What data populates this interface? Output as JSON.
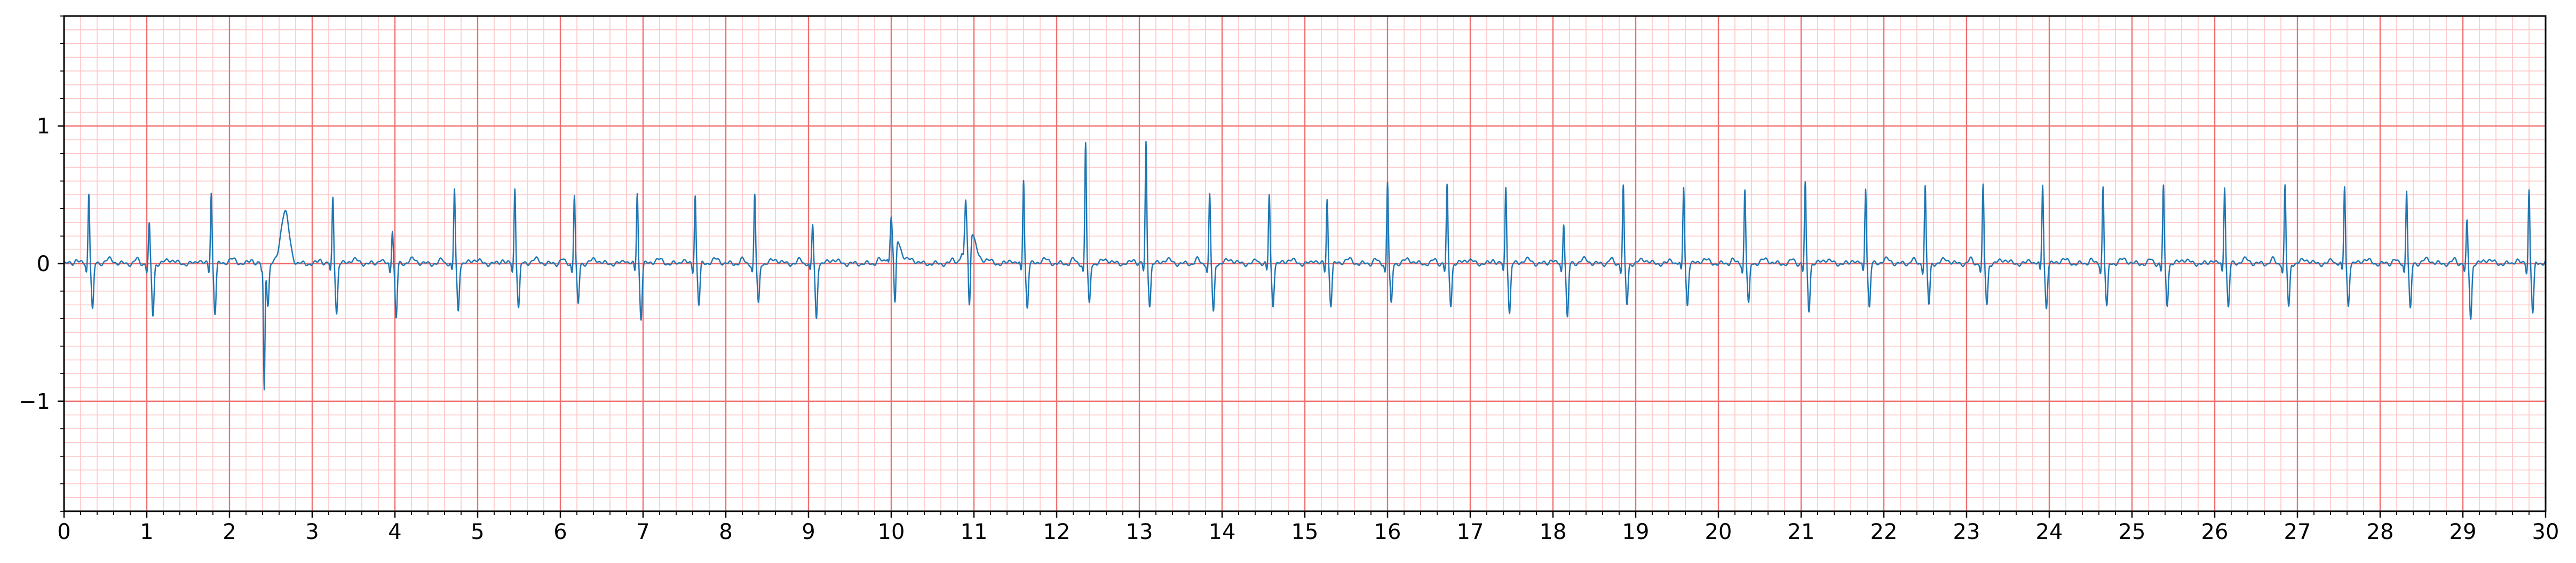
{
  "chart_data": {
    "type": "line",
    "title": "",
    "xlabel": "",
    "ylabel": "",
    "xlim": [
      0,
      30
    ],
    "ylim": [
      -1.8,
      1.8
    ],
    "grid": true,
    "legend": "none",
    "x_ticks": [
      0,
      1,
      2,
      3,
      4,
      5,
      6,
      7,
      8,
      9,
      10,
      11,
      12,
      13,
      14,
      15,
      16,
      17,
      18,
      19,
      20,
      21,
      22,
      23,
      24,
      25,
      26,
      27,
      28,
      29,
      30
    ],
    "x_tick_labels": [
      "0",
      "1",
      "2",
      "3",
      "4",
      "5",
      "6",
      "7",
      "8",
      "9",
      "10",
      "11",
      "12",
      "13",
      "14",
      "15",
      "16",
      "17",
      "18",
      "19",
      "20",
      "21",
      "22",
      "23",
      "24",
      "25",
      "26",
      "27",
      "28",
      "29",
      "30"
    ],
    "y_ticks": [
      1,
      0,
      -1
    ],
    "y_tick_labels": [
      "1",
      "0",
      "−1"
    ],
    "colors": {
      "trace": "#1f77b4",
      "major_grid": "#f07070",
      "minor_grid": "#ffc4c4",
      "axis": "#000000"
    },
    "beat_times": [
      0.3,
      1.03,
      1.78,
      2.42,
      3.25,
      3.97,
      4.72,
      5.45,
      6.17,
      6.93,
      7.63,
      8.35,
      9.05,
      10.0,
      10.9,
      11.6,
      12.35,
      13.08,
      13.85,
      14.57,
      15.27,
      16.0,
      16.72,
      17.43,
      18.13,
      18.85,
      19.58,
      20.32,
      21.05,
      21.78,
      22.5,
      23.2,
      23.92,
      24.65,
      25.38,
      26.12,
      26.85,
      27.57,
      28.32,
      29.05,
      29.8
    ],
    "r_peaks": [
      0.52,
      0.28,
      0.52,
      -0.92,
      0.48,
      0.25,
      0.54,
      0.55,
      0.5,
      0.52,
      0.5,
      0.5,
      0.28,
      0.2,
      0.27,
      0.62,
      0.88,
      0.88,
      0.5,
      0.5,
      0.47,
      0.6,
      0.56,
      0.56,
      0.3,
      0.56,
      0.56,
      0.54,
      0.58,
      0.56,
      0.56,
      0.56,
      0.58,
      0.56,
      0.56,
      0.57,
      0.56,
      0.56,
      0.54,
      0.3,
      0.54
    ],
    "s_troughs": [
      -0.34,
      -0.38,
      -0.36,
      -0.3,
      -0.36,
      -0.4,
      -0.34,
      -0.32,
      -0.3,
      -0.4,
      -0.3,
      -0.3,
      -0.4,
      -0.5,
      -0.57,
      -0.32,
      -0.3,
      -0.3,
      -0.36,
      -0.3,
      -0.3,
      -0.3,
      -0.3,
      -0.36,
      -0.4,
      -0.3,
      -0.3,
      -0.3,
      -0.34,
      -0.32,
      -0.3,
      -0.3,
      -0.32,
      -0.32,
      -0.3,
      -0.32,
      -0.32,
      -0.3,
      -0.34,
      -0.4,
      -0.36
    ],
    "t_waves": [
      0.03,
      0.03,
      0.03,
      0.38,
      0.03,
      0.03,
      0.03,
      0.03,
      0.03,
      0.03,
      0.03,
      0.03,
      0.03,
      0.03,
      0.03,
      0.03,
      0.03,
      0.03,
      0.03,
      0.03,
      0.03,
      0.03,
      0.03,
      0.03,
      0.03,
      0.03,
      0.03,
      0.03,
      0.03,
      0.03,
      0.03,
      0.03,
      0.03,
      0.03,
      0.03,
      0.03,
      0.03,
      0.03,
      0.03,
      0.03,
      0.03
    ],
    "extra_waves": [
      {
        "t": 10.05,
        "v": 0.2
      },
      {
        "t": 10.95,
        "v": 0.27
      }
    ]
  }
}
